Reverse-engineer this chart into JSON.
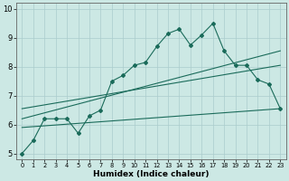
{
  "xlabel": "Humidex (Indice chaleur)",
  "ylabel": "",
  "xlim": [
    -0.5,
    23.5
  ],
  "ylim": [
    4.8,
    10.2
  ],
  "yticks": [
    5,
    6,
    7,
    8,
    9,
    10
  ],
  "xticks": [
    0,
    1,
    2,
    3,
    4,
    5,
    6,
    7,
    8,
    9,
    10,
    11,
    12,
    13,
    14,
    15,
    16,
    17,
    18,
    19,
    20,
    21,
    22,
    23
  ],
  "bg_color": "#cce8e4",
  "grid_color": "#aacccc",
  "line_color": "#1a6b5a",
  "line1_x": [
    0,
    1,
    2,
    3,
    4,
    5,
    6,
    7,
    8,
    9,
    10,
    11,
    12,
    13,
    14,
    15,
    16,
    17,
    18,
    19,
    20,
    21,
    22,
    23
  ],
  "line1_y": [
    5.0,
    5.45,
    6.2,
    6.2,
    6.2,
    5.7,
    6.3,
    6.5,
    7.5,
    7.7,
    8.05,
    8.15,
    8.7,
    9.15,
    9.3,
    8.75,
    9.1,
    9.5,
    8.55,
    8.05,
    8.05,
    7.55,
    7.4,
    6.55
  ],
  "line2_x": [
    0,
    23
  ],
  "line2_y": [
    6.2,
    8.55
  ],
  "line3_x": [
    0,
    23
  ],
  "line3_y": [
    6.55,
    8.05
  ],
  "line4_x": [
    0,
    23
  ],
  "line4_y": [
    5.9,
    6.55
  ]
}
